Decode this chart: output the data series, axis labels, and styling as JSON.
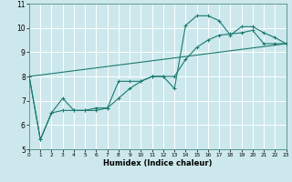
{
  "xlabel": "Humidex (Indice chaleur)",
  "ylabel": "",
  "bg_color": "#cce8ec",
  "grid_color": "#ffffff",
  "line_color": "#1a7a6e",
  "xlim": [
    0,
    23
  ],
  "ylim": [
    5,
    11
  ],
  "xticks": [
    0,
    1,
    2,
    3,
    4,
    5,
    6,
    7,
    8,
    9,
    10,
    11,
    12,
    13,
    14,
    15,
    16,
    17,
    18,
    19,
    20,
    21,
    22,
    23
  ],
  "yticks": [
    5,
    6,
    7,
    8,
    9,
    10,
    11
  ],
  "series": [
    {
      "x": [
        0,
        1,
        2,
        3,
        4,
        5,
        6,
        7,
        8,
        9,
        10,
        11,
        12,
        13,
        14,
        15,
        16,
        17,
        18,
        19,
        20,
        21,
        22,
        23
      ],
      "y": [
        8.0,
        5.4,
        6.5,
        7.1,
        6.6,
        6.6,
        6.6,
        6.7,
        7.8,
        7.8,
        7.8,
        8.0,
        8.0,
        7.5,
        10.1,
        10.5,
        10.5,
        10.3,
        9.7,
        10.05,
        10.05,
        9.8,
        9.6,
        9.35
      ]
    },
    {
      "x": [
        0,
        1,
        2,
        3,
        4,
        5,
        6,
        7,
        8,
        9,
        10,
        11,
        12,
        13,
        14,
        15,
        16,
        17,
        18,
        19,
        20,
        21,
        22,
        23
      ],
      "y": [
        8.0,
        5.4,
        6.5,
        6.6,
        6.6,
        6.6,
        6.7,
        6.7,
        7.1,
        7.5,
        7.8,
        8.0,
        8.0,
        8.0,
        8.7,
        9.2,
        9.5,
        9.7,
        9.75,
        9.8,
        9.9,
        9.35,
        9.35,
        9.35
      ]
    },
    {
      "x": [
        0,
        23
      ],
      "y": [
        8.0,
        9.35
      ]
    }
  ]
}
